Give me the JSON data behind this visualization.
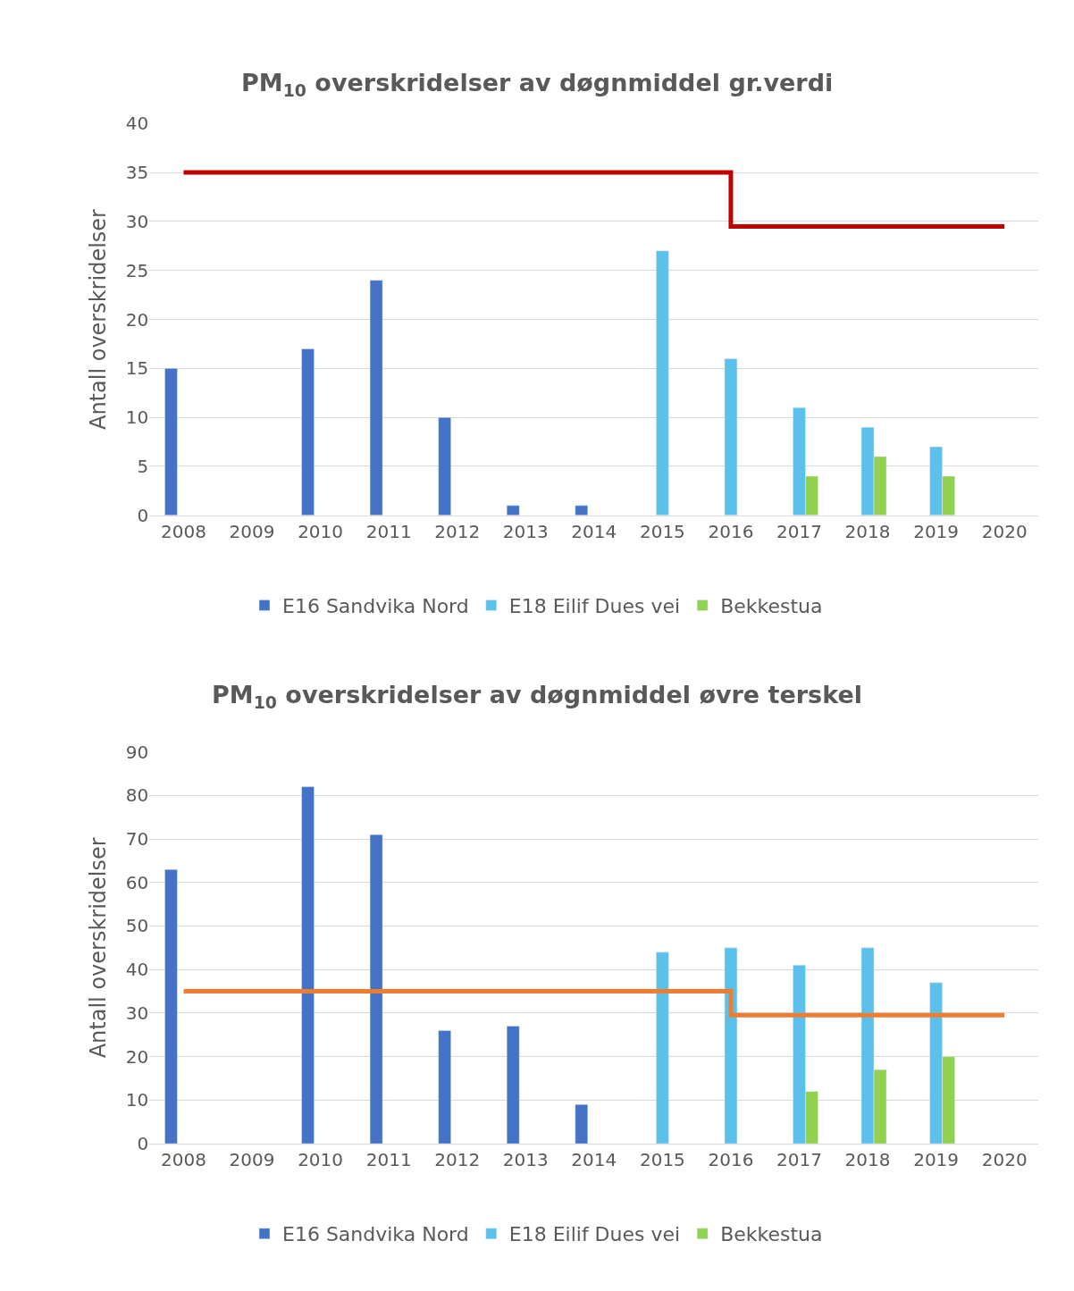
{
  "chart_data": [
    {
      "type": "bar",
      "title": "PM$_{10}$ overskridelser av døgnmiddel gr.verdi",
      "ylabel": "Antall overskridelser",
      "categories": [
        "2008",
        "2009",
        "2010",
        "2011",
        "2012",
        "2013",
        "2014",
        "2015",
        "2016",
        "2017",
        "2018",
        "2019",
        "2020"
      ],
      "series": [
        {
          "name": "E16 Sandvika Nord",
          "color": "#4472c4",
          "values": [
            15,
            null,
            17,
            24,
            10,
            1,
            1,
            null,
            null,
            null,
            null,
            null,
            null
          ]
        },
        {
          "name": "E18 Eilif Dues vei",
          "color": "#5bc0eb",
          "values": [
            null,
            null,
            null,
            null,
            null,
            null,
            null,
            27,
            16,
            11,
            9,
            7,
            null
          ]
        },
        {
          "name": "Bekkestua",
          "color": "#92d050",
          "values": [
            null,
            null,
            null,
            null,
            null,
            null,
            null,
            null,
            null,
            4,
            6,
            4,
            null
          ]
        },
        {
          "type": "step",
          "color": "#c00000",
          "values": [
            35,
            35,
            35,
            35,
            35,
            35,
            35,
            35,
            29.5,
            29.5,
            29.5,
            29.5,
            29.5
          ]
        }
      ],
      "ylim": [
        0,
        40
      ],
      "yticks": [
        0,
        5,
        10,
        15,
        20,
        25,
        30,
        35,
        40
      ],
      "grid": "y",
      "legend": "bottom"
    },
    {
      "type": "bar",
      "title": "PM$_{10}$ overskridelser av døgnmiddel øvre terskel",
      "ylabel": "Antall overskridelser",
      "categories": [
        "2008",
        "2009",
        "2010",
        "2011",
        "2012",
        "2013",
        "2014",
        "2015",
        "2016",
        "2017",
        "2018",
        "2019",
        "2020"
      ],
      "series": [
        {
          "name": "E16 Sandvika Nord",
          "color": "#4472c4",
          "values": [
            63,
            null,
            82,
            71,
            26,
            27,
            9,
            null,
            null,
            null,
            null,
            null,
            null
          ]
        },
        {
          "name": "E18 Eilif Dues vei",
          "color": "#5bc0eb",
          "values": [
            null,
            null,
            null,
            null,
            null,
            null,
            null,
            44,
            45,
            41,
            45,
            37,
            null
          ]
        },
        {
          "name": "Bekkestua",
          "color": "#92d050",
          "values": [
            null,
            null,
            null,
            null,
            null,
            null,
            null,
            null,
            null,
            12,
            17,
            20,
            null
          ]
        },
        {
          "type": "step",
          "color": "#ed7d31",
          "values": [
            35,
            35,
            35,
            35,
            35,
            35,
            35,
            35,
            29.5,
            29.5,
            29.5,
            29.5,
            29.5
          ]
        }
      ],
      "ylim": [
        0,
        90
      ],
      "yticks": [
        0,
        10,
        20,
        30,
        40,
        50,
        60,
        70,
        80,
        90
      ],
      "grid": "y",
      "legend": "bottom"
    }
  ]
}
